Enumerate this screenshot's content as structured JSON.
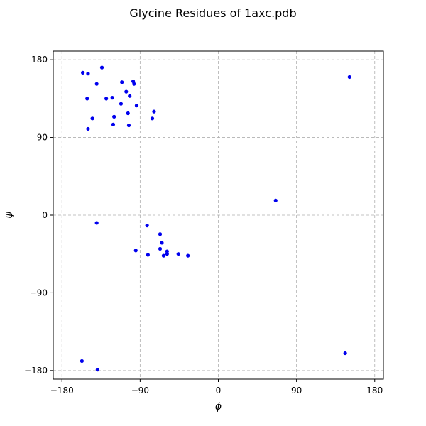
{
  "chart_data": {
    "type": "scatter",
    "title": "Glycine Residues of 1axc.pdb",
    "xlabel": "ϕ",
    "ylabel": "ψ",
    "xlim": [
      -190,
      190
    ],
    "ylim": [
      -190,
      190
    ],
    "xticks": [
      -180,
      -90,
      0,
      90,
      180
    ],
    "yticks": [
      -180,
      -90,
      0,
      90,
      180
    ],
    "xtick_labels": [
      "−180",
      "−90",
      "0",
      "90",
      "180"
    ],
    "ytick_labels": [
      "−180",
      "−90",
      "0",
      "90",
      "180"
    ],
    "grid": true,
    "grid_style": "dashed",
    "marker_color": "#0000ee",
    "points": [
      {
        "x": -156,
        "y": 165
      },
      {
        "x": -150,
        "y": 164
      },
      {
        "x": -134,
        "y": 171
      },
      {
        "x": -140,
        "y": 152
      },
      {
        "x": -151,
        "y": 135
      },
      {
        "x": -129,
        "y": 135
      },
      {
        "x": -122,
        "y": 136
      },
      {
        "x": -111,
        "y": 154
      },
      {
        "x": -98,
        "y": 155
      },
      {
        "x": -97,
        "y": 152
      },
      {
        "x": -106,
        "y": 143
      },
      {
        "x": -102,
        "y": 138
      },
      {
        "x": -112,
        "y": 129
      },
      {
        "x": -94,
        "y": 127
      },
      {
        "x": -120,
        "y": 114
      },
      {
        "x": -104,
        "y": 118
      },
      {
        "x": -145,
        "y": 112
      },
      {
        "x": -150,
        "y": 100
      },
      {
        "x": -121,
        "y": 105
      },
      {
        "x": -103,
        "y": 104
      },
      {
        "x": -74,
        "y": 120
      },
      {
        "x": -76,
        "y": 112
      },
      {
        "x": -140,
        "y": -9
      },
      {
        "x": -82,
        "y": -12
      },
      {
        "x": -95,
        "y": -41
      },
      {
        "x": -81,
        "y": -46
      },
      {
        "x": -67,
        "y": -22
      },
      {
        "x": -65,
        "y": -32
      },
      {
        "x": -67,
        "y": -39
      },
      {
        "x": -63,
        "y": -47
      },
      {
        "x": -59,
        "y": -42
      },
      {
        "x": -59,
        "y": -45
      },
      {
        "x": -46,
        "y": -45
      },
      {
        "x": -35,
        "y": -47
      },
      {
        "x": 66,
        "y": 17
      },
      {
        "x": 151,
        "y": 160
      },
      {
        "x": 146,
        "y": -160
      },
      {
        "x": -157,
        "y": -169
      },
      {
        "x": -139,
        "y": -179
      }
    ]
  }
}
